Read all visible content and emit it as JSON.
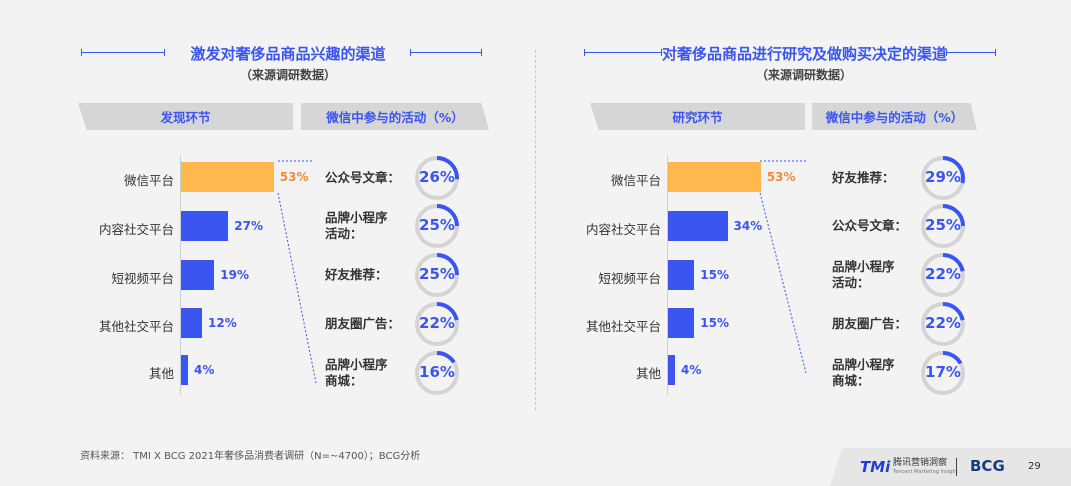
{
  "panels": [
    {
      "title": "激发对奢侈品商品兴趣的渠道",
      "subtitle": "（来源调研数据）",
      "left_header": "发现环节",
      "right_header": "微信中参与的活动（%）",
      "chart_data": {
        "type": "bar",
        "orientation": "horizontal",
        "categories": [
          "微信平台",
          "内容社交平台",
          "短视频平台",
          "其他社交平台",
          "其他"
        ],
        "values": [
          53,
          27,
          19,
          12,
          4
        ],
        "value_labels": [
          "53%",
          "27%",
          "19%",
          "12%",
          "4%"
        ],
        "unit": "%",
        "highlight_index": 0
      },
      "activities": [
        {
          "label": "公众号文章：",
          "value": 26,
          "text": "26%"
        },
        {
          "label": "品牌小程序\n活动：",
          "value": 25,
          "text": "25%"
        },
        {
          "label": "好友推荐：",
          "value": 25,
          "text": "25%"
        },
        {
          "label": "朋友圈广告：",
          "value": 22,
          "text": "22%"
        },
        {
          "label": "品牌小程序\n商城：",
          "value": 16,
          "text": "16%"
        }
      ]
    },
    {
      "title": "对奢侈品商品进行研究及做购买决定的渠道",
      "subtitle": "（来源调研数据）",
      "left_header": "研究环节",
      "right_header": "微信中参与的活动（%）",
      "chart_data": {
        "type": "bar",
        "orientation": "horizontal",
        "categories": [
          "微信平台",
          "内容社交平台",
          "短视频平台",
          "其他社交平台",
          "其他"
        ],
        "values": [
          53,
          34,
          15,
          15,
          4
        ],
        "value_labels": [
          "53%",
          "34%",
          "15%",
          "15%",
          "4%"
        ],
        "unit": "%",
        "highlight_index": 0
      },
      "activities": [
        {
          "label": "好友推荐：",
          "value": 29,
          "text": "29%"
        },
        {
          "label": "公众号文章：",
          "value": 25,
          "text": "25%"
        },
        {
          "label": "品牌小程序\n活动：",
          "value": 22,
          "text": "22%"
        },
        {
          "label": "朋友圈广告：",
          "value": 22,
          "text": "22%"
        },
        {
          "label": "品牌小程序\n商城：",
          "value": 17,
          "text": "17%"
        }
      ]
    }
  ],
  "colors": {
    "accent": "#3b55f0",
    "highlight": "#ffb84d",
    "highlight_text": "#f08c3a",
    "ring_track": "#d4d4d4"
  },
  "footer": {
    "source": "资料来源： TMI X BCG 2021年奢侈品消费者调研（N=~4700）；BCG分析",
    "tmi_logo": "TMi",
    "tmi_name": "腾讯营销洞察",
    "tmi_sub": "Tencent Marketing Insight",
    "bcg_logo": "BCG",
    "page_number": "29"
  }
}
